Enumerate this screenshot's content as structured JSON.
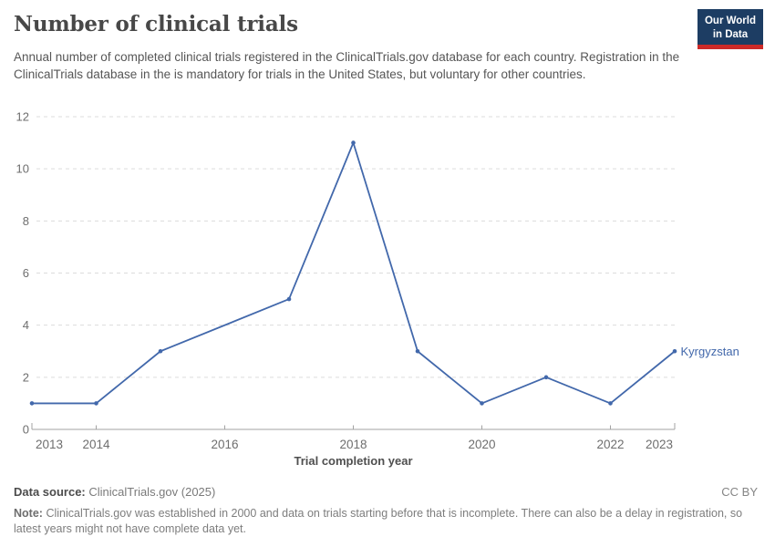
{
  "header": {
    "title": "Number of clinical trials",
    "subtitle": "Annual number of completed clinical trials registered in the ClinicalTrials.gov database for each country. Registration in the ClinicalTrials database in the is mandatory for trials in the United States, but voluntary for other countries.",
    "logo": {
      "line1": "Our World",
      "line2": "in Data",
      "bg_color": "#1d3d63",
      "bar_color": "#cd2a28"
    }
  },
  "chart_data": {
    "type": "line",
    "title": "Number of clinical trials",
    "xlabel": "Trial completion year",
    "ylabel": "",
    "xlim": [
      2013,
      2023
    ],
    "ylim": [
      0,
      12
    ],
    "x_ticks": [
      2013,
      2014,
      2016,
      2018,
      2020,
      2022,
      2023
    ],
    "y_ticks": [
      0,
      2,
      4,
      6,
      8,
      10,
      12
    ],
    "grid": "horizontal-dashed",
    "legend_position": "end-of-line-label",
    "series": [
      {
        "name": "Kyrgyzstan",
        "color": "#4268ab",
        "points": [
          [
            2013,
            1
          ],
          [
            2014,
            1
          ],
          [
            2015,
            3
          ],
          [
            2017,
            5
          ],
          [
            2018,
            11
          ],
          [
            2019,
            3
          ],
          [
            2020,
            1
          ],
          [
            2021,
            2
          ],
          [
            2022,
            1
          ],
          [
            2023,
            3
          ]
        ]
      }
    ],
    "style": {
      "gridline_color": "#dcdcdc",
      "axis_color": "#a3a3a3",
      "tick_label_color": "#6e6e6e",
      "axis_title_color": "#4f4f4f"
    }
  },
  "footer": {
    "datasource_label": "Data source:",
    "datasource_value": "ClinicalTrials.gov (2025)",
    "license": "CC BY",
    "note_label": "Note:",
    "note_text": "ClinicalTrials.gov was established in 2000 and data on trials starting before that is incomplete. There can also be a delay in registration, so latest years might not have complete data yet."
  }
}
